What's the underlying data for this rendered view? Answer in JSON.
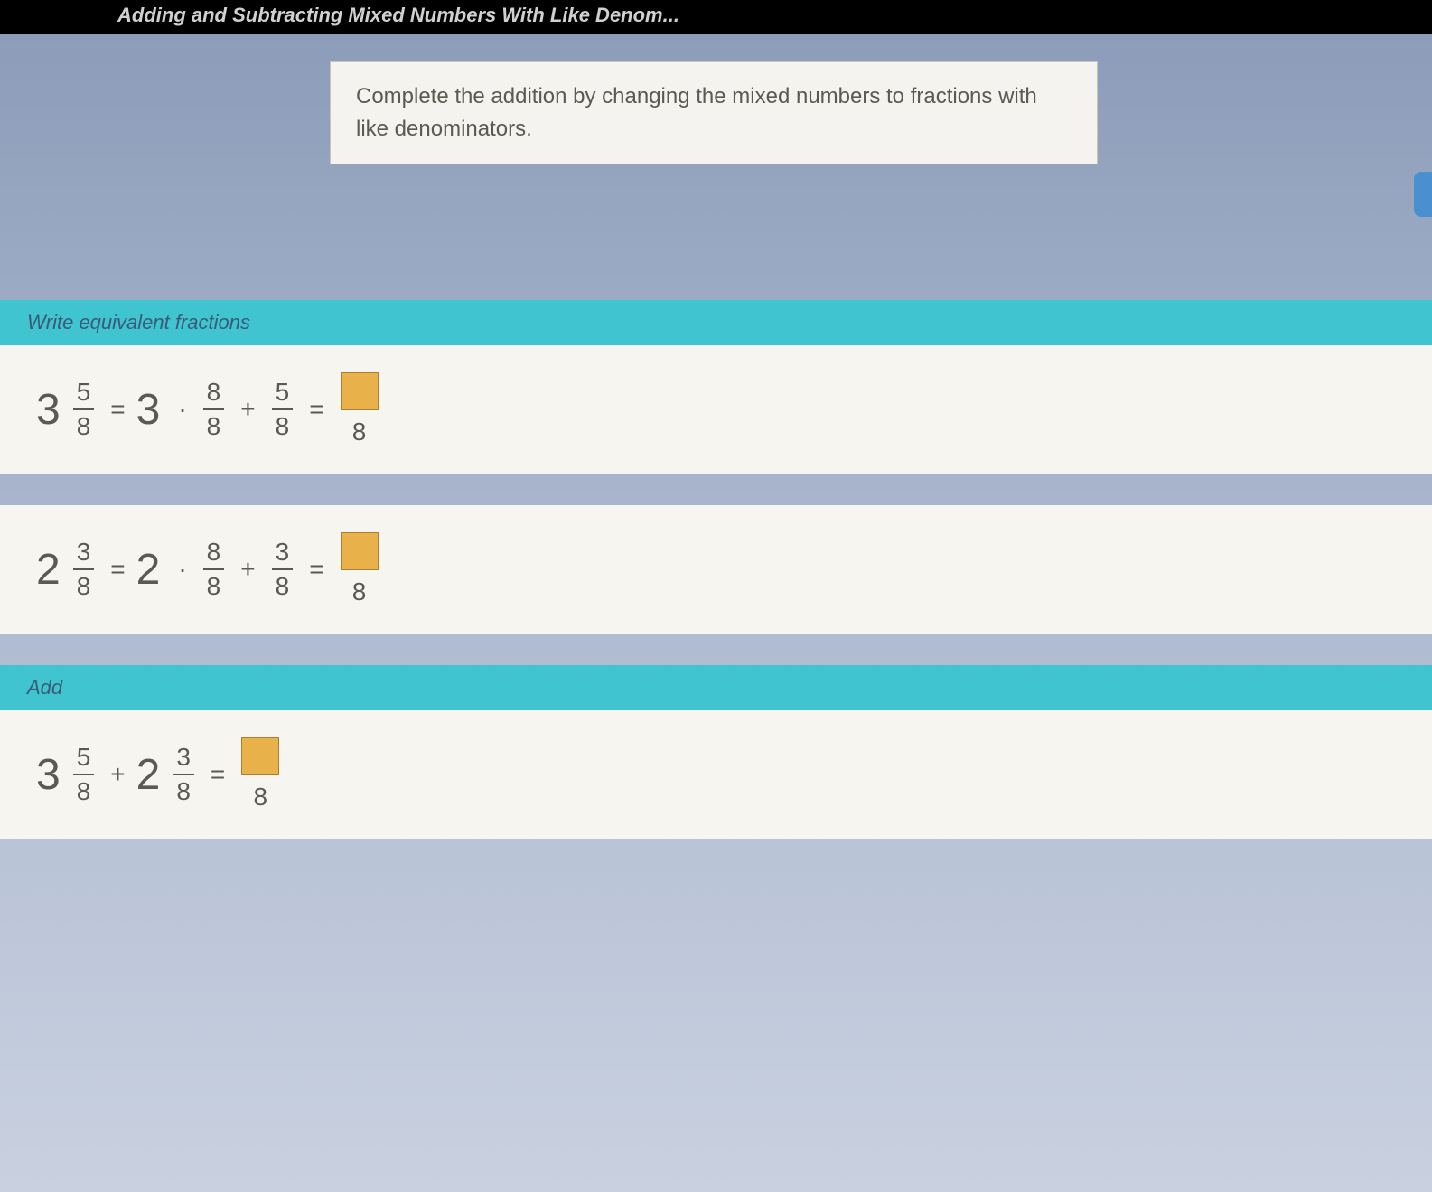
{
  "titlebar": {
    "text": "Adding and Subtracting Mixed Numbers With Like Denom..."
  },
  "instruction": {
    "text": "Complete the addition by changing the mixed numbers to fractions with like denominators."
  },
  "sections": {
    "equivalent": {
      "header": "Write equivalent fractions"
    },
    "add": {
      "header": "Add"
    }
  },
  "equations": {
    "eq1": {
      "whole1": "3",
      "frac1_num": "5",
      "frac1_den": "8",
      "op1": "=",
      "whole2": "3",
      "op2": "·",
      "frac2_num": "8",
      "frac2_den": "8",
      "op3": "+",
      "frac3_num": "5",
      "frac3_den": "8",
      "op4": "=",
      "answer_den": "8"
    },
    "eq2": {
      "whole1": "2",
      "frac1_num": "3",
      "frac1_den": "8",
      "op1": "=",
      "whole2": "2",
      "op2": "·",
      "frac2_num": "8",
      "frac2_den": "8",
      "op3": "+",
      "frac3_num": "3",
      "frac3_den": "8",
      "op4": "=",
      "answer_den": "8"
    },
    "eq3": {
      "whole1": "3",
      "frac1_num": "5",
      "frac1_den": "8",
      "op1": "+",
      "whole2": "2",
      "frac2_num": "3",
      "frac2_den": "8",
      "op2": "=",
      "answer_den": "8"
    }
  },
  "colors": {
    "title_bg": "#000000",
    "section_header_bg": "#3fc4d0",
    "equation_bg": "#f7f5ef",
    "instruction_bg": "#f5f3ef",
    "answer_box_bg": "#e8b14a",
    "body_gradient_top": "#8a9bb8",
    "body_gradient_bottom": "#c9d1e0"
  }
}
